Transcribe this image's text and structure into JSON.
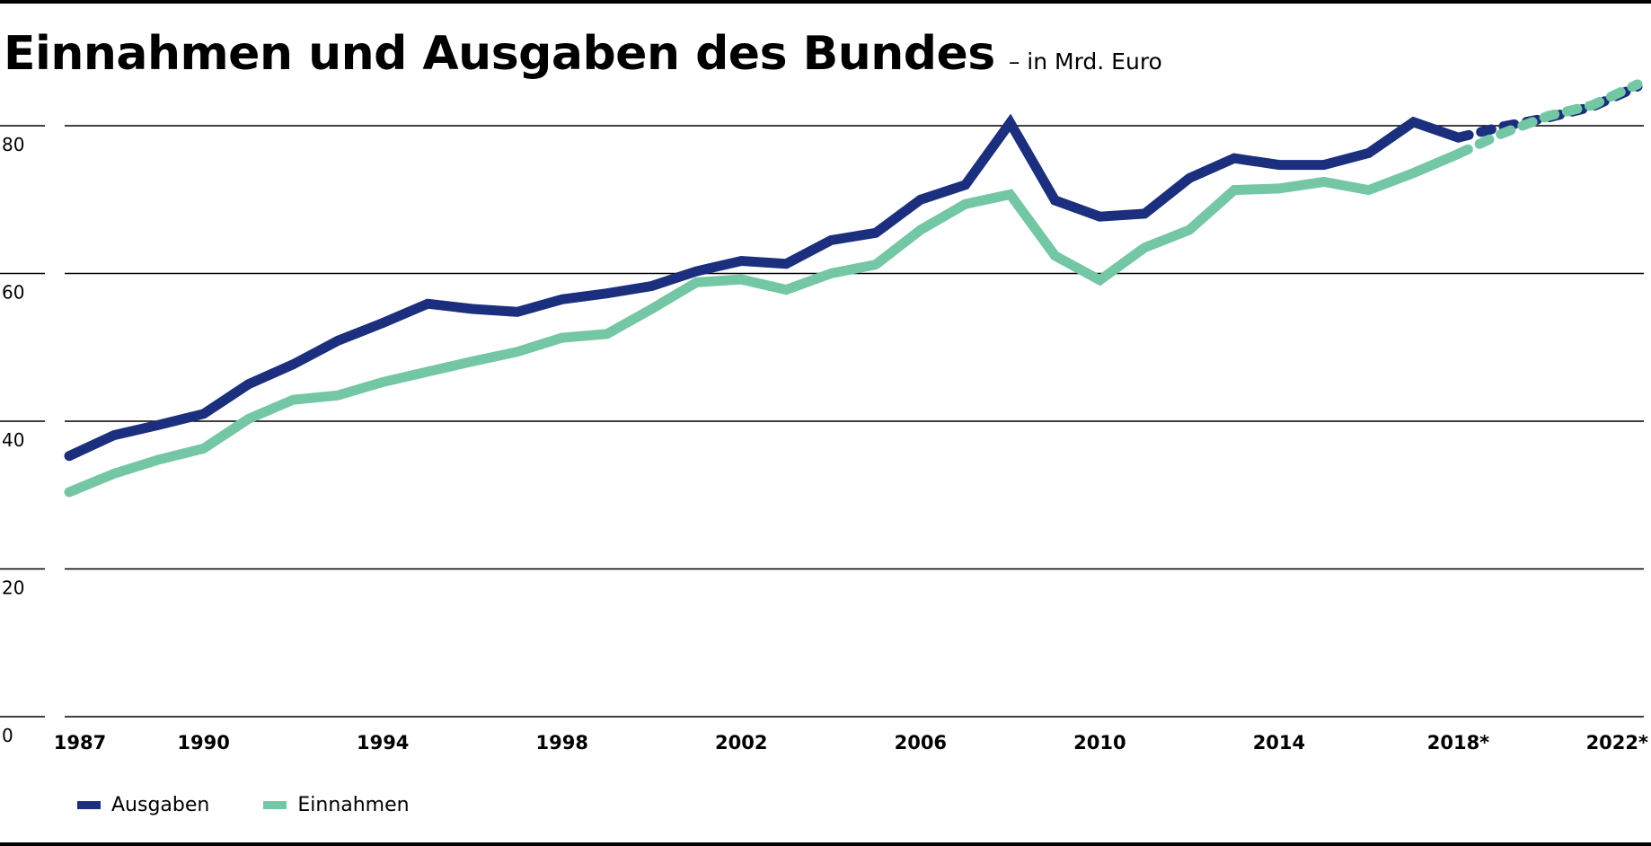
{
  "title": "Einnahmen und Ausgaben des Bundes",
  "subtitle": "– in Mrd. Euro",
  "colors": {
    "ausgaben": "#1b2f7e",
    "einnahmen": "#74c7a4"
  },
  "legend": [
    {
      "label": "Ausgaben",
      "color": "#1b2f7e"
    },
    {
      "label": "Einnahmen",
      "color": "#74c7a4"
    }
  ],
  "chart_data": {
    "type": "line",
    "title": "Einnahmen und Ausgaben des Bundes",
    "subtitle": "– in Mrd. Euro",
    "xlim": [
      1987,
      2022
    ],
    "ylim": [
      0,
      80
    ],
    "y_ticks": [
      0,
      20,
      40,
      60,
      80
    ],
    "x_ticks": [
      {
        "value": 1987,
        "label": "1987"
      },
      {
        "value": 1990,
        "label": "1990"
      },
      {
        "value": 1994,
        "label": "1994"
      },
      {
        "value": 1998,
        "label": "1998"
      },
      {
        "value": 2002,
        "label": "2002"
      },
      {
        "value": 2006,
        "label": "2006"
      },
      {
        "value": 2010,
        "label": "2010"
      },
      {
        "value": 2014,
        "label": "2014"
      },
      {
        "value": 2018,
        "label": "2018*"
      },
      {
        "value": 2022,
        "label": "2022*"
      }
    ],
    "grid": "horizontal",
    "legend_position": "bottom-left",
    "series": [
      {
        "name": "Ausgaben",
        "color": "#1b2f7e",
        "x": [
          1987,
          1988,
          1989,
          1990,
          1991,
          1992,
          1993,
          1994,
          1995,
          1996,
          1997,
          1998,
          1999,
          2000,
          2001,
          2002,
          2003,
          2004,
          2005,
          2006,
          2007,
          2008,
          2009,
          2010,
          2011,
          2012,
          2013,
          2014,
          2015,
          2016,
          2017,
          2018
        ],
        "values": [
          35.3,
          38.1,
          39.5,
          41.0,
          45.0,
          47.7,
          50.9,
          53.3,
          55.9,
          55.2,
          54.8,
          56.5,
          57.3,
          58.3,
          60.3,
          61.7,
          61.3,
          64.5,
          65.5,
          70.0,
          72.0,
          80.4,
          69.9,
          67.7,
          68.1,
          72.9,
          75.6,
          74.7,
          74.7,
          76.3,
          80.5,
          78.4
        ],
        "projection": {
          "x": [
            2018,
            2019,
            2020,
            2021,
            2022
          ],
          "values": [
            78.4,
            79.9,
            81.1,
            82.6,
            85.3
          ]
        }
      },
      {
        "name": "Einnahmen",
        "color": "#74c7a4",
        "x": [
          1987,
          1988,
          1989,
          1990,
          1991,
          1992,
          1993,
          1994,
          1995,
          1996,
          1997,
          1998,
          1999,
          2000,
          2001,
          2002,
          2003,
          2004,
          2005,
          2006,
          2007,
          2008,
          2009,
          2010,
          2011,
          2012,
          2013,
          2014,
          2015,
          2016,
          2017,
          2018
        ],
        "values": [
          30.4,
          32.9,
          34.8,
          36.3,
          40.3,
          42.9,
          43.5,
          45.3,
          46.7,
          48.1,
          49.4,
          51.3,
          51.8,
          55.2,
          58.8,
          59.2,
          57.8,
          60.0,
          61.2,
          65.9,
          69.4,
          70.7,
          62.4,
          59.1,
          63.5,
          65.9,
          71.3,
          71.5,
          72.4,
          71.3,
          73.6,
          76.2
        ],
        "projection": {
          "x": [
            2018,
            2019,
            2020,
            2021,
            2022
          ],
          "values": [
            76.2,
            79.0,
            81.3,
            82.8,
            85.6
          ]
        }
      }
    ]
  }
}
